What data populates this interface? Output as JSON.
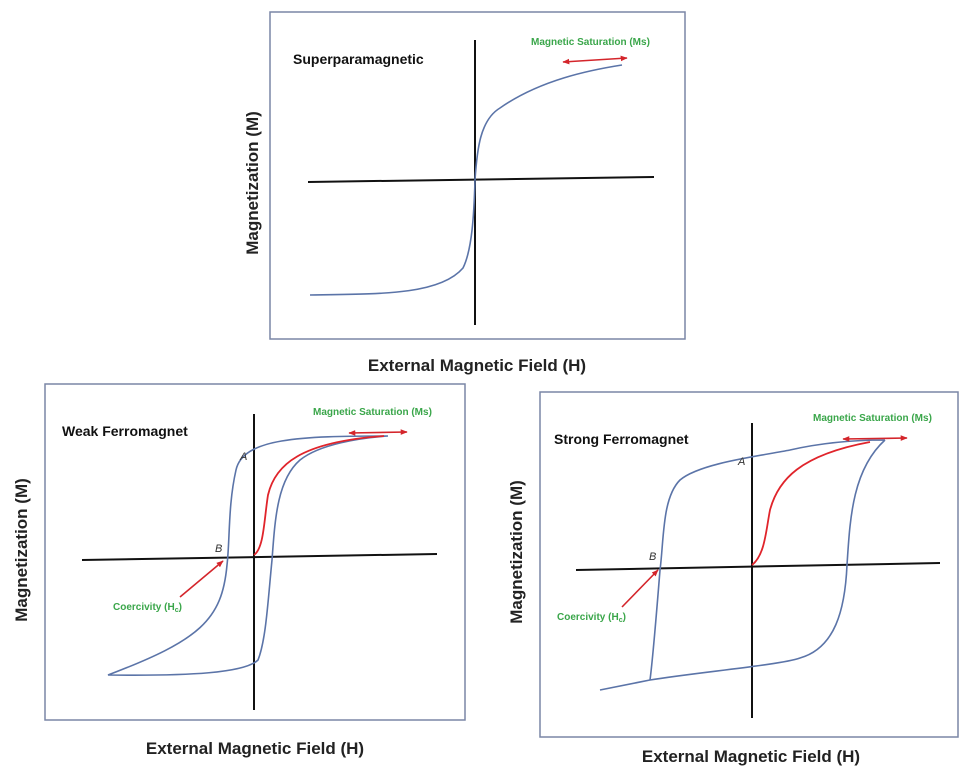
{
  "colors": {
    "curve": "#5b74a8",
    "virgin_curve": "#e0242b",
    "arrow": "#d4252b",
    "annotation_text": "#3aa64a",
    "axis": "#111111",
    "panel_border": "#7a86a6"
  },
  "panels": [
    {
      "title": "Superparamagnetic",
      "ylabel": "Magnetization (M)",
      "xlabel": "External Magnetic Field (H)",
      "saturation_label": "Magnetic Saturation (Ms)"
    },
    {
      "title": "Weak Ferromagnet",
      "ylabel": "Magnetization (M)",
      "xlabel": "External Magnetic Field (H)",
      "saturation_label": "Magnetic Saturation (Ms)",
      "coercivity_label": "Coercivity (H",
      "coercivity_sub": "c",
      "coercivity_close": ")",
      "point_a": "A",
      "point_b": "B"
    },
    {
      "title": "Strong Ferromagnet",
      "ylabel": "Magnetization (M)",
      "xlabel": "External Magnetic Field (H)",
      "saturation_label": "Magnetic Saturation (Ms)",
      "coercivity_label": "Coercivity (H",
      "coercivity_sub": "c",
      "coercivity_close": ")",
      "point_a": "A",
      "point_b": "B"
    }
  ]
}
